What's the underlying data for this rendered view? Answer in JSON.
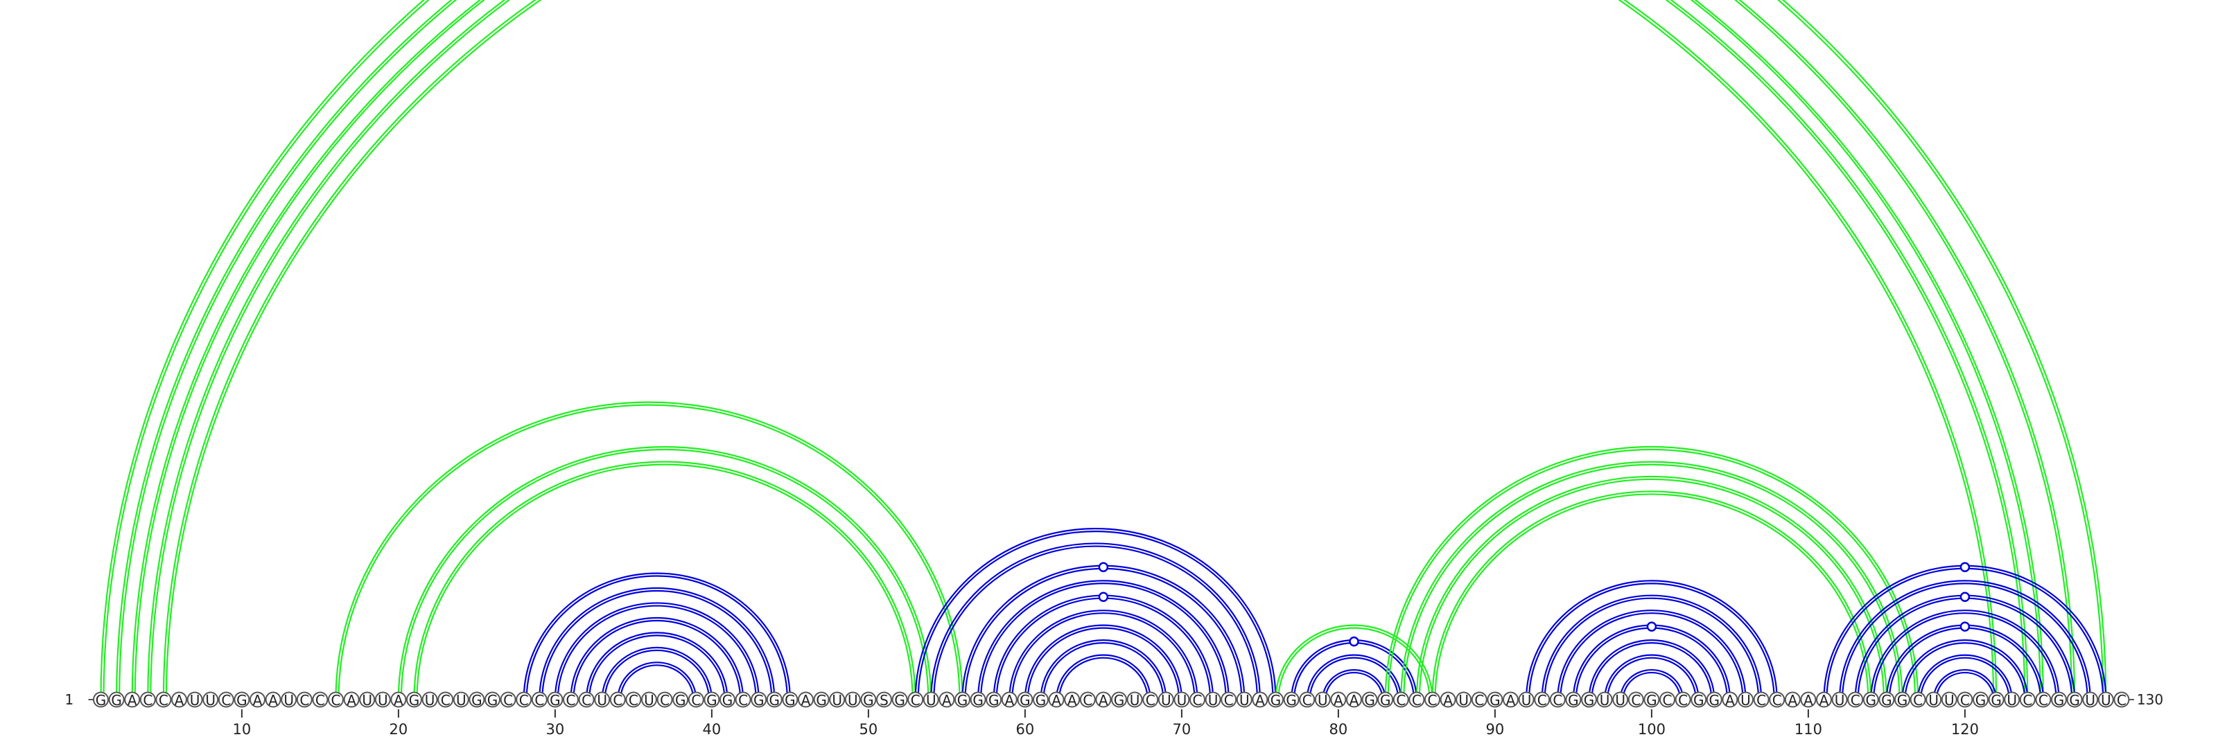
{
  "sequence": "GGACCAUUCGAAUCCCAUUAGUCUGGCCCGCCUCCUCGCGGCGGGAGUUGSGCUAGGGAGGAACAGUCUUCUCUAGGCUAAGGCCCAUCGAUCCGGUUCGCCGGAUCCAAAUCGGGCUUCGGUCCGGUUC",
  "start_label": "1",
  "end_label": "130",
  "ticks": [
    "10",
    "20",
    "30",
    "40",
    "50",
    "60",
    "70",
    "80",
    "90",
    "100",
    "110",
    "120"
  ],
  "colors": {
    "nested": "#0000dd",
    "crossing": "#22ee22",
    "backbone": "#555555"
  },
  "arcs": [
    {
      "i": 1,
      "j": 129,
      "color": "crossing"
    },
    {
      "i": 2,
      "j": 127,
      "color": "crossing"
    },
    {
      "i": 3,
      "j": 125,
      "color": "crossing"
    },
    {
      "i": 4,
      "j": 124,
      "color": "crossing"
    },
    {
      "i": 5,
      "j": 122,
      "color": "crossing"
    },
    {
      "i": 16,
      "j": 56,
      "color": "crossing"
    },
    {
      "i": 20,
      "j": 54,
      "color": "crossing"
    },
    {
      "i": 21,
      "j": 53,
      "color": "crossing"
    },
    {
      "i": 28,
      "j": 45,
      "color": "nested"
    },
    {
      "i": 29,
      "j": 44,
      "color": "nested"
    },
    {
      "i": 30,
      "j": 43,
      "color": "nested"
    },
    {
      "i": 31,
      "j": 42,
      "color": "nested"
    },
    {
      "i": 32,
      "j": 41,
      "color": "nested"
    },
    {
      "i": 33,
      "j": 40,
      "color": "nested"
    },
    {
      "i": 34,
      "j": 39,
      "color": "nested"
    },
    {
      "i": 53,
      "j": 76,
      "color": "nested"
    },
    {
      "i": 54,
      "j": 75,
      "color": "nested"
    },
    {
      "i": 56,
      "j": 74,
      "color": "nested"
    },
    {
      "i": 57,
      "j": 73,
      "color": "nested"
    },
    {
      "i": 58,
      "j": 72,
      "color": "nested"
    },
    {
      "i": 59,
      "j": 71,
      "color": "nested"
    },
    {
      "i": 60,
      "j": 70,
      "color": "nested"
    },
    {
      "i": 61,
      "j": 69,
      "color": "nested"
    },
    {
      "i": 62,
      "j": 68,
      "color": "nested"
    },
    {
      "i": 76,
      "j": 86,
      "color": "crossing"
    },
    {
      "i": 77,
      "j": 85,
      "color": "nested"
    },
    {
      "i": 78,
      "j": 84,
      "color": "nested"
    },
    {
      "i": 79,
      "j": 83,
      "color": "nested"
    },
    {
      "i": 83,
      "j": 117,
      "color": "crossing"
    },
    {
      "i": 84,
      "j": 116,
      "color": "crossing"
    },
    {
      "i": 85,
      "j": 115,
      "color": "crossing"
    },
    {
      "i": 86,
      "j": 114,
      "color": "crossing"
    },
    {
      "i": 92,
      "j": 108,
      "color": "nested"
    },
    {
      "i": 93,
      "j": 107,
      "color": "nested"
    },
    {
      "i": 94,
      "j": 106,
      "color": "nested"
    },
    {
      "i": 95,
      "j": 105,
      "color": "nested"
    },
    {
      "i": 96,
      "j": 104,
      "color": "nested"
    },
    {
      "i": 97,
      "j": 103,
      "color": "nested"
    },
    {
      "i": 98,
      "j": 102,
      "color": "nested"
    },
    {
      "i": 111,
      "j": 129,
      "color": "nested"
    },
    {
      "i": 112,
      "j": 128,
      "color": "nested"
    },
    {
      "i": 113,
      "j": 127,
      "color": "nested"
    },
    {
      "i": 114,
      "j": 126,
      "color": "nested"
    },
    {
      "i": 115,
      "j": 125,
      "color": "nested"
    },
    {
      "i": 116,
      "j": 124,
      "color": "nested"
    },
    {
      "i": 117,
      "j": 123,
      "color": "nested"
    },
    {
      "i": 118,
      "j": 122,
      "color": "nested"
    }
  ],
  "markers": [
    {
      "pair": [
        1,
        129
      ],
      "color": "crossing"
    },
    {
      "pair": [
        56,
        74
      ],
      "color": "nested"
    },
    {
      "pair": [
        58,
        72
      ],
      "color": "nested"
    },
    {
      "pair": [
        77,
        85
      ],
      "color": "nested"
    },
    {
      "pair": [
        95,
        105
      ],
      "color": "nested"
    },
    {
      "pair": [
        111,
        129
      ],
      "color": "nested"
    },
    {
      "pair": [
        113,
        127
      ],
      "color": "nested"
    },
    {
      "pair": [
        115,
        125
      ],
      "color": "nested"
    }
  ]
}
